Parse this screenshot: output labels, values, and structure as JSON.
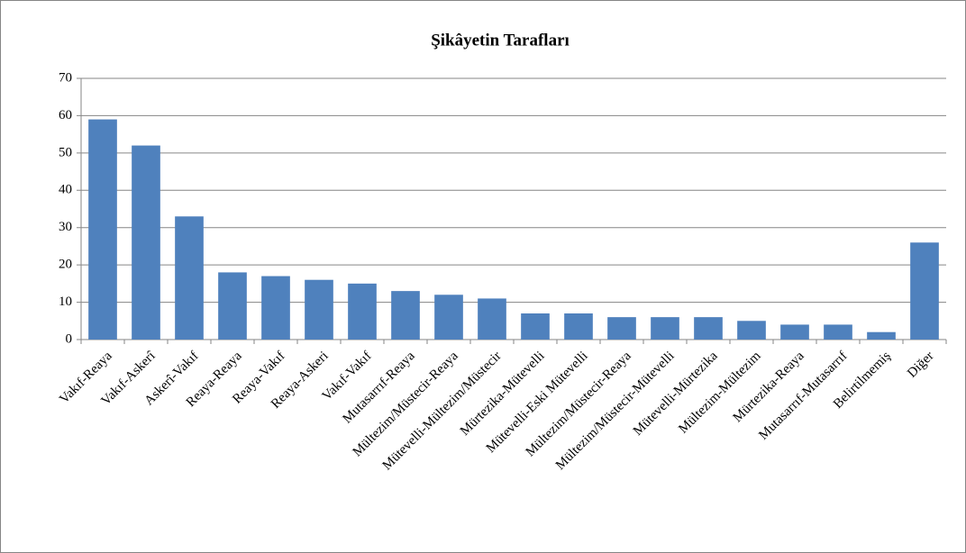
{
  "chart_data": {
    "type": "bar",
    "title": "Şikâyetin Tarafları",
    "categories": [
      "Vakıf-Reaya",
      "Vakıf-Askerî",
      "Askerî-Vakıf",
      "Reaya-Reaya",
      "Reaya-Vakıf",
      "Reaya-Askeri",
      "Vakıf-Vakıf",
      "Mutasarrıf-Reaya",
      "Mültezim/Müstecir-Reaya",
      "Mütevelli-Mültezim/Müstecir",
      "Mürtezika-Mütevelli",
      "Mütevelli-Eski Mütevelli",
      "Mültezim/Müstecir-Reaya",
      "Mültezim/Müstecir-Mütevelli",
      "Mütevelli-Mürtezika",
      "Mültezim-Mültezim",
      "Mürtezika-Reaya",
      "Mutasarrıf-Mutasarrıf",
      "Belirtilmemiş",
      "Diğer"
    ],
    "values": [
      59,
      52,
      33,
      18,
      17,
      16,
      15,
      13,
      12,
      11,
      7,
      7,
      6,
      6,
      6,
      5,
      4,
      4,
      2,
      26
    ],
    "color": "#4f81bd",
    "ylim": [
      0,
      70
    ],
    "yticks": [
      0,
      10,
      20,
      30,
      40,
      50,
      60,
      70
    ],
    "grid": true
  }
}
